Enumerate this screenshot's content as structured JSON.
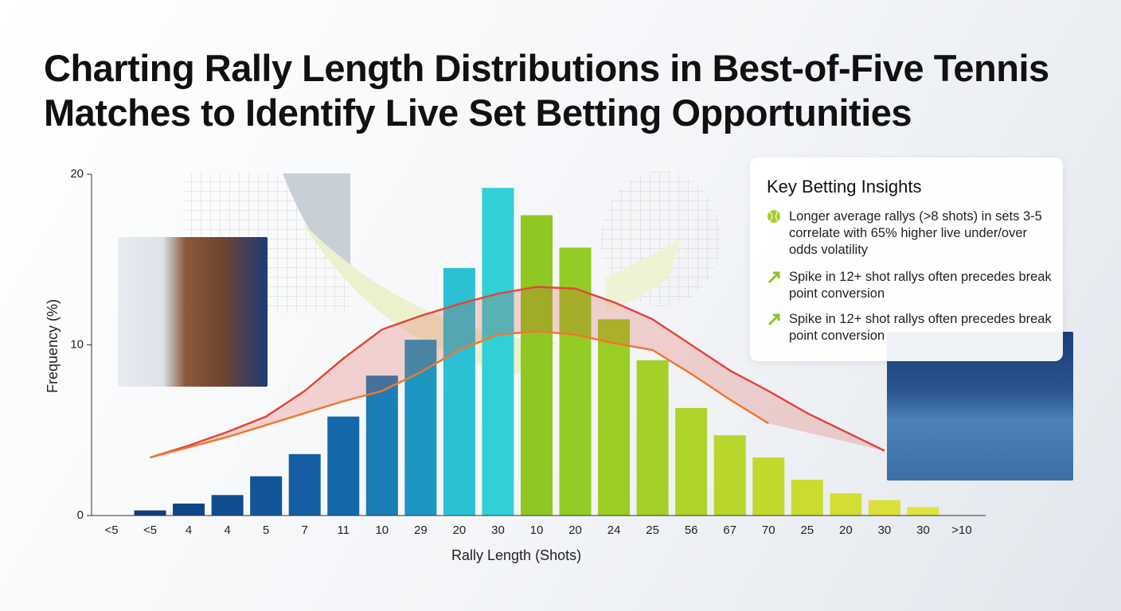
{
  "chart_data": {
    "type": "bar",
    "title": "Charting Rally Length Distributions in Best-of-Five Tennis Matches to Identify Live Set Betting Opportunities",
    "x_label": "Rally Length (Shots)",
    "y_label": "Frequency (%)",
    "categories": [
      "<5",
      "<5",
      "4",
      "4",
      "5",
      "7",
      "11",
      "10",
      "29",
      "20",
      "30",
      "10",
      "20",
      "24",
      "25",
      "56",
      "67",
      "70",
      "25",
      "20",
      "30",
      "30",
      ">10"
    ],
    "values": [
      null,
      0.3,
      0.7,
      1.2,
      2.3,
      3.6,
      5.8,
      8.2,
      10.3,
      14.5,
      19.2,
      17.6,
      15.7,
      11.5,
      9.1,
      6.3,
      4.7,
      3.4,
      2.1,
      1.3,
      0.9,
      0.5,
      null
    ],
    "colors": [
      null,
      "#0d3f7e",
      "#0f4687",
      "#104d8f",
      "#125598",
      "#135fa1",
      "#1568a9",
      "#1a7db5",
      "#1f95c2",
      "#2cc0d4",
      "#33cfd6",
      "#8fc823",
      "#94cb24",
      "#9ccd25",
      "#a5d027",
      "#aed329",
      "#b8d62b",
      "#c2d82d",
      "#cbdb30",
      "#d3de34",
      "#d9e139",
      "#dde43e",
      null
    ],
    "ylim": [
      0,
      20
    ],
    "yticks": [
      0,
      10,
      20
    ],
    "series": [
      {
        "type": "line",
        "color": "#e0483a",
        "values": [
          null,
          3.4,
          4.1,
          4.9,
          5.8,
          7.3,
          9.2,
          10.9,
          11.7,
          12.4,
          13.0,
          13.4,
          13.3,
          12.5,
          11.5,
          10.0,
          8.5,
          7.3,
          6.0,
          4.9,
          3.8,
          null,
          null
        ]
      },
      {
        "type": "line",
        "color": "#ec7a30",
        "values": [
          null,
          3.4,
          4.0,
          4.6,
          5.3,
          6.0,
          6.7,
          7.3,
          8.4,
          9.7,
          10.6,
          10.8,
          10.6,
          10.1,
          9.7,
          8.3,
          6.8,
          5.4,
          null,
          null,
          null,
          null,
          null
        ]
      }
    ]
  },
  "insights": {
    "title": "Key Betting Insights",
    "items": [
      "Longer average rallys (>8 shots) in sets 3-5 correlate with 65% higher live under/over odds volatility",
      "Spike in 12+ shot rallys often precedes break point conversion",
      "Spike in 12+ shot rallys often precedes break point conversion"
    ]
  }
}
